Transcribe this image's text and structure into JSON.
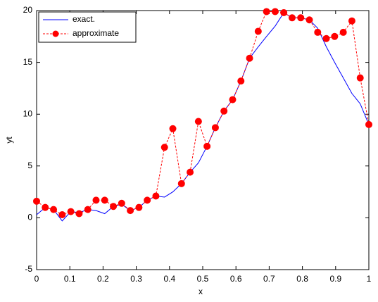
{
  "chart_data": {
    "type": "line",
    "xlabel": "x",
    "ylabel": "yt",
    "x": [
      0,
      0.026,
      0.051,
      0.077,
      0.103,
      0.128,
      0.154,
      0.179,
      0.205,
      0.231,
      0.256,
      0.282,
      0.308,
      0.333,
      0.359,
      0.385,
      0.41,
      0.436,
      0.462,
      0.487,
      0.513,
      0.538,
      0.564,
      0.59,
      0.615,
      0.641,
      0.667,
      0.692,
      0.718,
      0.744,
      0.769,
      0.795,
      0.821,
      0.846,
      0.872,
      0.897,
      0.923,
      0.949,
      0.974,
      1
    ],
    "series": [
      {
        "name": "exact.",
        "color": "#0000ff",
        "line_style": "solid",
        "marker": "none",
        "values": [
          0.3,
          1.0,
          0.8,
          -0.3,
          0.6,
          0.5,
          0.8,
          0.7,
          0.4,
          1.1,
          1.3,
          0.7,
          1.0,
          1.7,
          2.1,
          2.0,
          2.5,
          3.3,
          4.4,
          5.3,
          6.9,
          8.7,
          10.3,
          11.4,
          13.2,
          15.4,
          16.5,
          17.5,
          18.5,
          19.8,
          19.3,
          19.3,
          19.1,
          18.3,
          16.5,
          15.0,
          13.5,
          12.0,
          11.0,
          9.0
        ]
      },
      {
        "name": "approximate",
        "color": "#ff0000",
        "line_style": "dashed",
        "marker": "circle",
        "values": [
          1.6,
          1.0,
          0.8,
          0.3,
          0.6,
          0.4,
          0.8,
          1.7,
          1.7,
          1.1,
          1.4,
          0.7,
          1.0,
          1.7,
          2.1,
          6.8,
          8.6,
          3.3,
          4.4,
          9.3,
          6.9,
          8.7,
          10.3,
          11.4,
          13.2,
          15.4,
          18.0,
          19.9,
          19.9,
          19.8,
          19.3,
          19.3,
          19.1,
          17.9,
          17.3,
          17.5,
          17.9,
          19.0,
          13.5,
          9.0
        ]
      }
    ],
    "xlim": [
      0,
      1
    ],
    "xticks": [
      0,
      0.1,
      0.2,
      0.3,
      0.4,
      0.5,
      0.6,
      0.7,
      0.8,
      0.9,
      1
    ],
    "ylim": [
      -5,
      20
    ],
    "yticks": [
      -5,
      0,
      5,
      10,
      15,
      20
    ],
    "grid": false,
    "legend": "top-left"
  }
}
